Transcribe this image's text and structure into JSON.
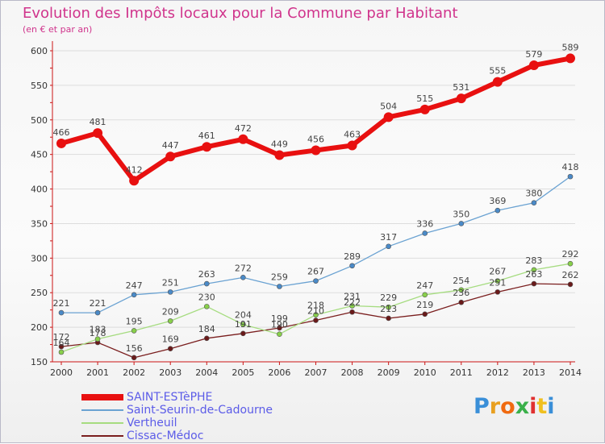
{
  "header": {
    "title": "Evolution des Impôts locaux pour la Commune par Habitant",
    "subtitle": "(en € et par an)"
  },
  "colors": {
    "title": "#d0348c",
    "legend_text": "#5c5ce8",
    "axis": "#cc1414",
    "grid": "#dddddd"
  },
  "logo": {
    "text": "Proxiti",
    "colors": [
      "#3a8fd8",
      "#e8a020",
      "#f06a10",
      "#3ab04a",
      "#e03030",
      "#f0c020",
      "#3a8fd8"
    ]
  },
  "chart_data": {
    "type": "line",
    "title": "Evolution des Impôts locaux pour la Commune par Habitant",
    "subtitle": "(en € et par an)",
    "categories": [
      "2000",
      "2001",
      "2002",
      "2003",
      "2004",
      "2005",
      "2006",
      "2007",
      "2008",
      "2009",
      "2010",
      "2011",
      "2012",
      "2013",
      "2014"
    ],
    "ylim": [
      150,
      600
    ],
    "yticks": [
      150,
      200,
      250,
      300,
      350,
      400,
      450,
      500,
      550,
      600
    ],
    "grid": true,
    "legend_position": "bottom-left",
    "series": [
      {
        "name": "SAINT-ESTèPHE",
        "color": "#e81010",
        "style": "thick",
        "values": [
          466,
          481,
          412,
          447,
          461,
          472,
          449,
          456,
          463,
          504,
          515,
          531,
          555,
          579,
          589
        ]
      },
      {
        "name": "Saint-Seurin-de-Cadourne",
        "color": "#6aa2d2",
        "marker": "#4a8ac8",
        "style": "thin",
        "values": [
          221,
          221,
          247,
          251,
          263,
          272,
          259,
          267,
          289,
          317,
          336,
          350,
          369,
          380,
          418
        ]
      },
      {
        "name": "Vertheuil",
        "color": "#a6dc80",
        "marker": "#88d04a",
        "style": "thin",
        "values": [
          164,
          183,
          195,
          209,
          230,
          204,
          190,
          218,
          231,
          229,
          247,
          254,
          267,
          283,
          292
        ]
      },
      {
        "name": "Cissac-Médoc",
        "color": "#7a1e1e",
        "marker": "#6a1a1a",
        "style": "thin",
        "values": [
          172,
          178,
          156,
          169,
          184,
          191,
          199,
          210,
          222,
          213,
          219,
          236,
          251,
          263,
          262
        ]
      }
    ],
    "labels": {
      "SAINT-ESTèPHE": [
        "466",
        "481",
        "412",
        "447",
        "461",
        "472",
        "449",
        "456",
        "463",
        "504",
        "515",
        "531",
        "555",
        "579",
        "589"
      ],
      "Saint-Seurin-de-Cadourne": [
        "221",
        "221",
        "247",
        "251",
        "263",
        "272",
        "259",
        "267",
        "289",
        "317",
        "336",
        "350",
        "369",
        "380",
        "418"
      ],
      "Vertheuil": [
        "164",
        "183",
        "195",
        "209",
        "230",
        "204",
        "190",
        "218",
        "231",
        "229",
        "247",
        "254",
        "267",
        "283",
        "292"
      ],
      "Cissac-Médoc": [
        "172",
        "178",
        "156",
        "169",
        "184",
        "191",
        "199",
        "210",
        "222",
        "213",
        "219",
        "236",
        "251",
        "263",
        "262"
      ]
    }
  }
}
